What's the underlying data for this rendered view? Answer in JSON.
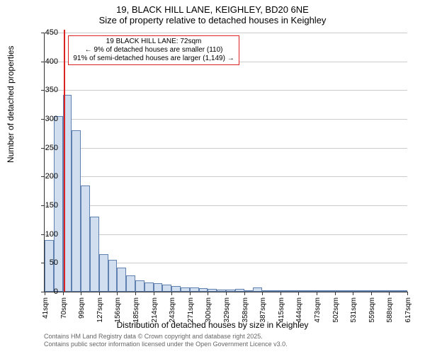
{
  "title": {
    "line1": "19, BLACK HILL LANE, KEIGHLEY, BD20 6NE",
    "line2": "Size of property relative to detached houses in Keighley",
    "fontsize": 13,
    "color": "#000000"
  },
  "chart": {
    "type": "histogram",
    "plot_bg": "#ffffff",
    "grid_color": "#cccccc",
    "axis_color": "#333333",
    "bar_fill": "#d0def0",
    "bar_border": "#6080b0",
    "ylim": [
      0,
      450
    ],
    "ytick_step": 50,
    "yticks": [
      0,
      50,
      100,
      150,
      200,
      250,
      300,
      350,
      400,
      450
    ],
    "ylabel": "Number of detached properties",
    "xlabel": "Distribution of detached houses by size in Keighley",
    "label_fontsize": 12,
    "tick_fontsize": 11,
    "xtick_fontsize": 10,
    "marker_color": "#dd2222",
    "marker_x_value": 72,
    "x_start": 41,
    "x_step": 14.5,
    "xticks": [
      "41sqm",
      "70sqm",
      "99sqm",
      "127sqm",
      "156sqm",
      "185sqm",
      "214sqm",
      "243sqm",
      "271sqm",
      "300sqm",
      "329sqm",
      "358sqm",
      "387sqm",
      "415sqm",
      "444sqm",
      "473sqm",
      "502sqm",
      "531sqm",
      "559sqm",
      "588sqm",
      "617sqm"
    ],
    "bars": [
      {
        "v": 90
      },
      {
        "v": 305
      },
      {
        "v": 342
      },
      {
        "v": 280
      },
      {
        "v": 185
      },
      {
        "v": 130
      },
      {
        "v": 65
      },
      {
        "v": 55
      },
      {
        "v": 42
      },
      {
        "v": 28
      },
      {
        "v": 20
      },
      {
        "v": 16
      },
      {
        "v": 15
      },
      {
        "v": 12
      },
      {
        "v": 10
      },
      {
        "v": 8
      },
      {
        "v": 8
      },
      {
        "v": 6
      },
      {
        "v": 5
      },
      {
        "v": 4
      },
      {
        "v": 4
      },
      {
        "v": 5
      },
      {
        "v": 3
      },
      {
        "v": 7
      },
      {
        "v": 3
      },
      {
        "v": 2
      },
      {
        "v": 2
      },
      {
        "v": 2
      },
      {
        "v": 1
      },
      {
        "v": 1
      },
      {
        "v": 1
      },
      {
        "v": 1
      },
      {
        "v": 1
      },
      {
        "v": 1
      },
      {
        "v": 1
      },
      {
        "v": 1
      },
      {
        "v": 1
      },
      {
        "v": 1
      },
      {
        "v": 1
      },
      {
        "v": 1
      }
    ],
    "annotation": {
      "line1": "19 BLACK HILL LANE: 72sqm",
      "line2": "← 9% of detached houses are smaller (110)",
      "line3": "91% of semi-detached houses are larger (1,149) →",
      "border_color": "#dd2222",
      "bg_color": "#ffffff",
      "fontsize": 10
    }
  },
  "attribution": {
    "line1": "Contains HM Land Registry data © Crown copyright and database right 2025.",
    "line2": "Contains public sector information licensed under the Open Government Licence v3.0.",
    "color": "#666666",
    "fontsize": 9
  }
}
